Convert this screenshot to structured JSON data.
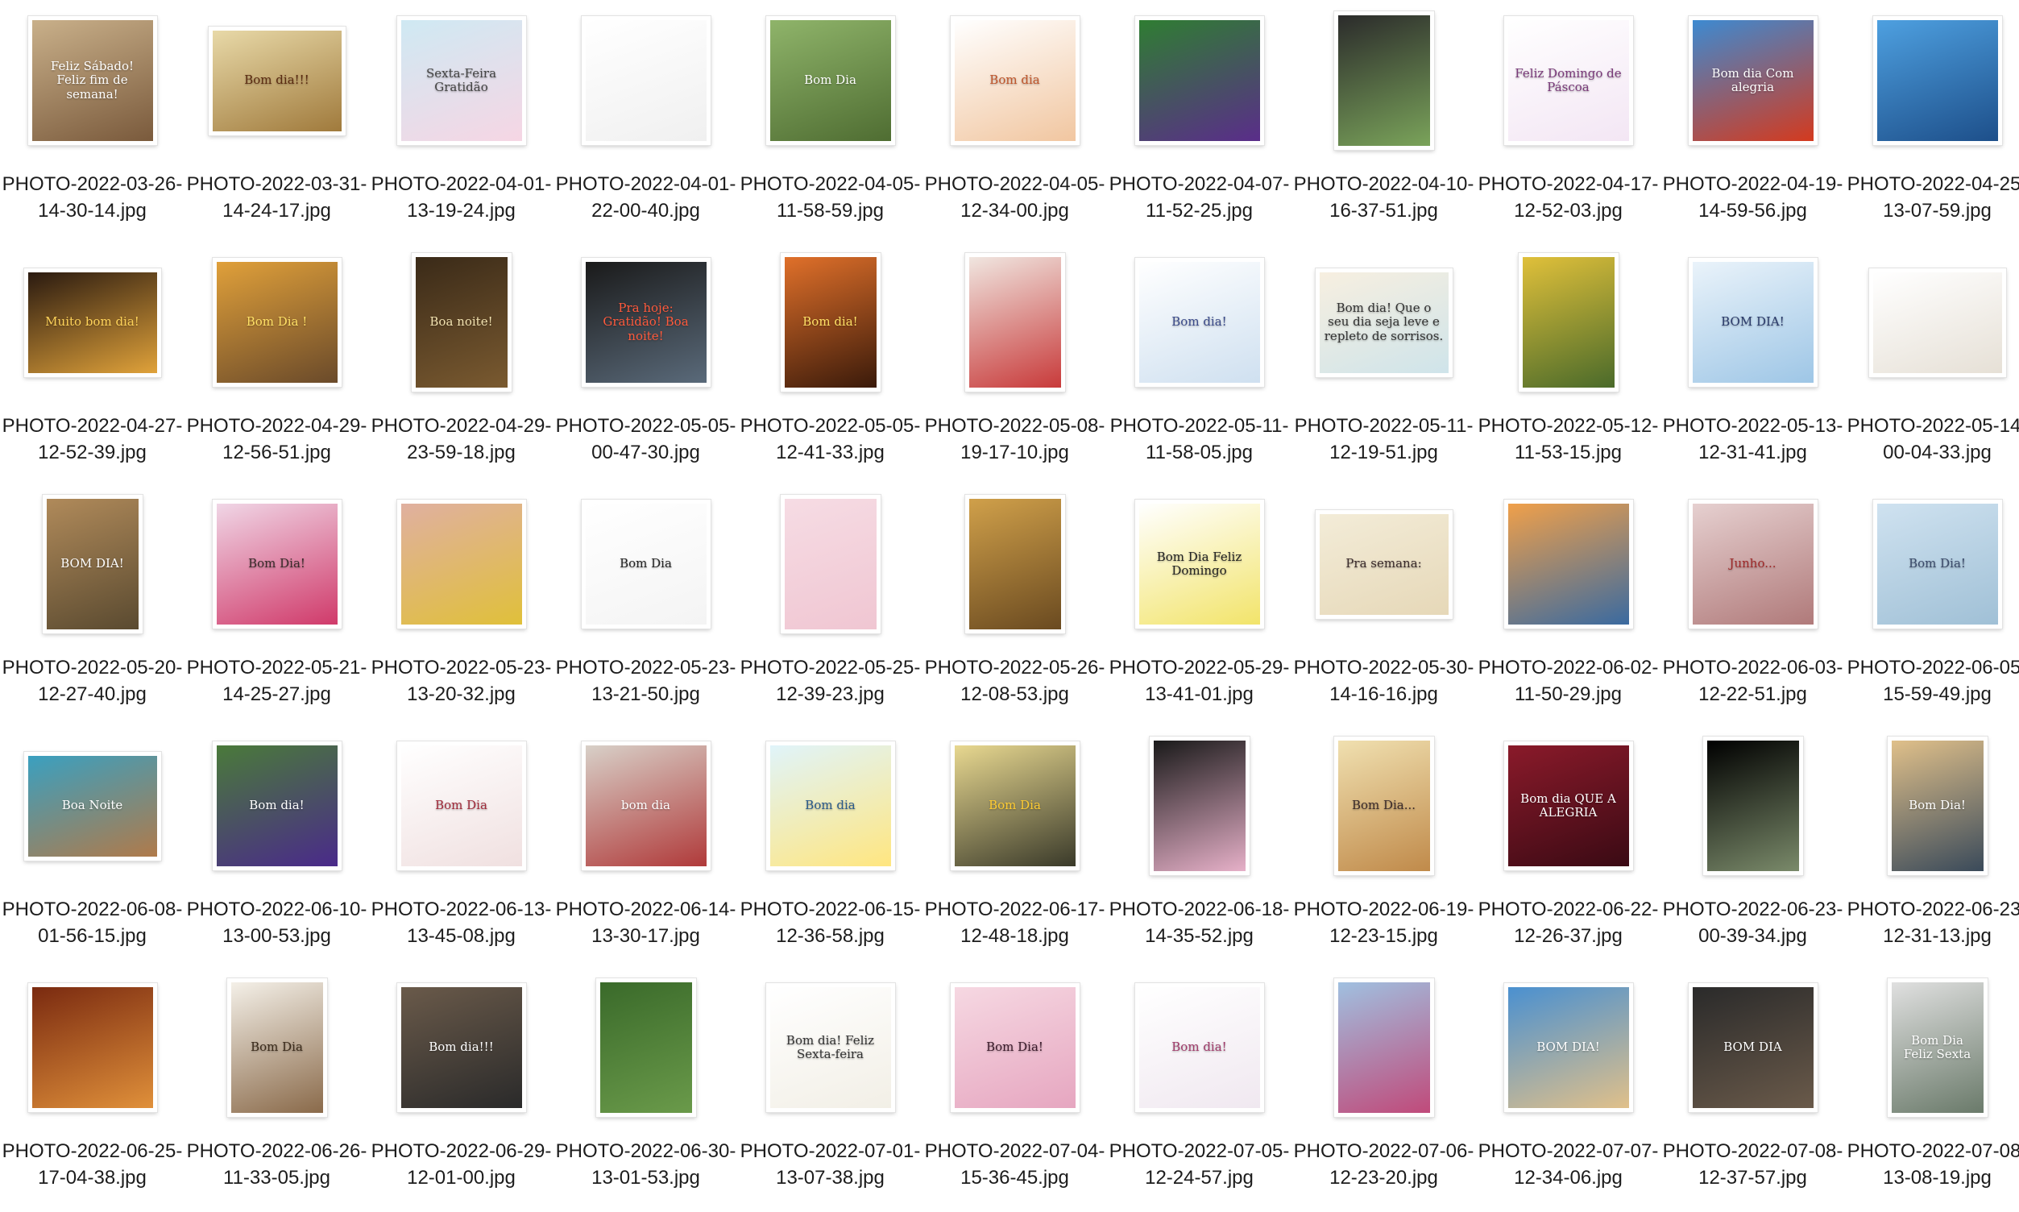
{
  "window": {
    "view": "icon-grid"
  },
  "files": [
    {
      "name": "PHOTO-2022-03-26-14-30-14.jpg",
      "caption": "Feliz Sábado! Feliz fim de semana!",
      "shape": "square",
      "c1": "#c9b08a",
      "c2": "#7a5a3c",
      "fg": "#ffffff"
    },
    {
      "name": "PHOTO-2022-03-31-14-24-17.jpg",
      "caption": "Bom dia!!!",
      "shape": "landscape",
      "c1": "#e8d9a8",
      "c2": "#a07a3c",
      "fg": "#5a2a10"
    },
    {
      "name": "PHOTO-2022-04-01-13-19-24.jpg",
      "caption": "Sexta-Feira Gratidão",
      "shape": "square",
      "c1": "#cfe9f3",
      "c2": "#f6d6e4",
      "fg": "#444444"
    },
    {
      "name": "PHOTO-2022-04-01-22-00-40.jpg",
      "caption": "",
      "shape": "square",
      "c1": "#ffffff",
      "c2": "#f0f0f0",
      "fg": "#222222"
    },
    {
      "name": "PHOTO-2022-04-05-11-58-59.jpg",
      "caption": "Bom Dia",
      "shape": "square",
      "c1": "#8fb46a",
      "c2": "#4f6d32",
      "fg": "#ffffff"
    },
    {
      "name": "PHOTO-2022-04-05-12-34-00.jpg",
      "caption": "Bom dia",
      "shape": "square",
      "c1": "#ffffff",
      "c2": "#f1c6a0",
      "fg": "#c0552a"
    },
    {
      "name": "PHOTO-2022-04-07-11-52-25.jpg",
      "caption": "",
      "shape": "square",
      "c1": "#2f7d32",
      "c2": "#5a2d8a",
      "fg": "#ffffff"
    },
    {
      "name": "PHOTO-2022-04-10-16-37-51.jpg",
      "caption": "",
      "shape": "tall",
      "c1": "#2b2b2b",
      "c2": "#7aa35a",
      "fg": "#ffffff"
    },
    {
      "name": "PHOTO-2022-04-17-12-52-03.jpg",
      "caption": "Feliz Domingo de Páscoa",
      "shape": "square",
      "c1": "#ffffff",
      "c2": "#f3e6f4",
      "fg": "#7a3a7a"
    },
    {
      "name": "PHOTO-2022-04-19-14-59-56.jpg",
      "caption": "Bom dia Com alegria",
      "shape": "square",
      "c1": "#3d8ad1",
      "c2": "#d43a1e",
      "fg": "#ffffff"
    },
    {
      "name": "PHOTO-2022-04-25-13-07-59.jpg",
      "caption": "",
      "shape": "square",
      "c1": "#4ea0e0",
      "c2": "#1d4f8a",
      "fg": "#ffffff"
    },
    {
      "name": "PHOTO-2022-04-27-12-52-39.jpg",
      "caption": "Muito bom dia!",
      "shape": "landscape",
      "c1": "#2a1a10",
      "c2": "#e0a23a",
      "fg": "#ffd35a"
    },
    {
      "name": "PHOTO-2022-04-29-12-56-51.jpg",
      "caption": "Bom Dia !",
      "shape": "square",
      "c1": "#e0a03a",
      "c2": "#6a4a2a",
      "fg": "#ffe066"
    },
    {
      "name": "PHOTO-2022-04-29-23-59-18.jpg",
      "caption": "Boa noite!",
      "shape": "tall",
      "c1": "#3a2a18",
      "c2": "#7a5a30",
      "fg": "#f2e2b0"
    },
    {
      "name": "PHOTO-2022-05-05-00-47-30.jpg",
      "caption": "Pra hoje: Gratidão! Boa noite!",
      "shape": "square",
      "c1": "#1a1a1a",
      "c2": "#5a6a7a",
      "fg": "#ff5a3c"
    },
    {
      "name": "PHOTO-2022-05-05-12-41-33.jpg",
      "caption": "Bom dia!",
      "shape": "tall",
      "c1": "#e0702a",
      "c2": "#3a1a0a",
      "fg": "#ffe066"
    },
    {
      "name": "PHOTO-2022-05-08-19-17-10.jpg",
      "caption": "",
      "shape": "tall",
      "c1": "#f0e6e0",
      "c2": "#c83a3a",
      "fg": "#ffffff"
    },
    {
      "name": "PHOTO-2022-05-11-11-58-05.jpg",
      "caption": "Bom dia!",
      "shape": "square",
      "c1": "#ffffff",
      "c2": "#cfe0f0",
      "fg": "#3a4a8a"
    },
    {
      "name": "PHOTO-2022-05-11-12-19-51.jpg",
      "caption": "Bom dia! Que o seu dia seja leve e repleto de sorrisos.",
      "shape": "landscape",
      "c1": "#f7efe0",
      "c2": "#cfe4ea",
      "fg": "#333333"
    },
    {
      "name": "PHOTO-2022-05-12-11-53-15.jpg",
      "caption": "",
      "shape": "tall",
      "c1": "#e0c03a",
      "c2": "#4a6a2a",
      "fg": "#ffffff"
    },
    {
      "name": "PHOTO-2022-05-13-12-31-41.jpg",
      "caption": "BOM DIA!",
      "shape": "square",
      "c1": "#eaf3fa",
      "c2": "#9ec6e6",
      "fg": "#2a3a6a"
    },
    {
      "name": "PHOTO-2022-05-14-00-04-33.jpg",
      "caption": "",
      "shape": "landscape",
      "c1": "#ffffff",
      "c2": "#e6e0d6",
      "fg": "#444444"
    },
    {
      "name": "PHOTO-2022-05-20-12-27-40.jpg",
      "caption": "BOM DIA!",
      "shape": "tall",
      "c1": "#b08a5a",
      "c2": "#5a4a30",
      "fg": "#ffffff"
    },
    {
      "name": "PHOTO-2022-05-21-14-25-27.jpg",
      "caption": "Bom Dia!",
      "shape": "square",
      "c1": "#f0d6e6",
      "c2": "#d03a6a",
      "fg": "#3a2a2a"
    },
    {
      "name": "PHOTO-2022-05-23-13-20-32.jpg",
      "caption": "",
      "shape": "square",
      "c1": "#e0b0a0",
      "c2": "#e0c03a",
      "fg": "#4a2a1a"
    },
    {
      "name": "PHOTO-2022-05-23-13-21-50.jpg",
      "caption": "Bom Dia",
      "shape": "square",
      "c1": "#ffffff",
      "c2": "#f4f4f4",
      "fg": "#222222"
    },
    {
      "name": "PHOTO-2022-05-25-12-39-23.jpg",
      "caption": "",
      "shape": "tall",
      "c1": "#f6dce4",
      "c2": "#f0c6d2",
      "fg": "#a03a5a"
    },
    {
      "name": "PHOTO-2022-05-26-12-08-53.jpg",
      "caption": "",
      "shape": "tall",
      "c1": "#d0a04a",
      "c2": "#6a4a20",
      "fg": "#ffffff"
    },
    {
      "name": "PHOTO-2022-05-29-13-41-01.jpg",
      "caption": "Bom Dia Feliz Domingo",
      "shape": "square",
      "c1": "#ffffff",
      "c2": "#f2e46a",
      "fg": "#222222"
    },
    {
      "name": "PHOTO-2022-05-30-14-16-16.jpg",
      "caption": "Pra semana:",
      "shape": "landscape",
      "c1": "#f3ecd8",
      "c2": "#e6d8b8",
      "fg": "#3a2a2a"
    },
    {
      "name": "PHOTO-2022-06-02-11-50-29.jpg",
      "caption": "",
      "shape": "square",
      "c1": "#f0a04a",
      "c2": "#3a6aa0",
      "fg": "#ffffff"
    },
    {
      "name": "PHOTO-2022-06-03-12-22-51.jpg",
      "caption": "Junho...",
      "shape": "square",
      "c1": "#e6d0d0",
      "c2": "#b07a7a",
      "fg": "#a02a2a"
    },
    {
      "name": "PHOTO-2022-06-05-15-59-49.jpg",
      "caption": "Bom Dia!",
      "shape": "square",
      "c1": "#cfe2f0",
      "c2": "#a0c0d6",
      "fg": "#3a4a6a"
    },
    {
      "name": "PHOTO-2022-06-08-01-56-15.jpg",
      "caption": "Boa Noite",
      "shape": "landscape",
      "c1": "#3aa0c0",
      "c2": "#b07a4a",
      "fg": "#ffffff"
    },
    {
      "name": "PHOTO-2022-06-10-13-00-53.jpg",
      "caption": "Bom dia!",
      "shape": "square",
      "c1": "#4a7a3a",
      "c2": "#4a2a8a",
      "fg": "#ffffff"
    },
    {
      "name": "PHOTO-2022-06-13-13-45-08.jpg",
      "caption": "Bom Dia",
      "shape": "square",
      "c1": "#ffffff",
      "c2": "#f0e0e0",
      "fg": "#a02a3a"
    },
    {
      "name": "PHOTO-2022-06-14-13-30-17.jpg",
      "caption": "bom dia",
      "shape": "square",
      "c1": "#d8d0c8",
      "c2": "#b03a3a",
      "fg": "#ffffff"
    },
    {
      "name": "PHOTO-2022-06-15-12-36-58.jpg",
      "caption": "Bom dia",
      "shape": "square",
      "c1": "#e0f4fa",
      "c2": "#ffe680",
      "fg": "#2a5a8a"
    },
    {
      "name": "PHOTO-2022-06-17-12-48-18.jpg",
      "caption": "Bom Dia",
      "shape": "square",
      "c1": "#e8d890",
      "c2": "#3a3a2a",
      "fg": "#ffcc33"
    },
    {
      "name": "PHOTO-2022-06-18-14-35-52.jpg",
      "caption": "",
      "shape": "tall",
      "c1": "#1a1a1a",
      "c2": "#e6b0c8",
      "fg": "#ffffff"
    },
    {
      "name": "PHOTO-2022-06-19-12-23-15.jpg",
      "caption": "Bom Dia...",
      "shape": "tall",
      "c1": "#f0e0b0",
      "c2": "#c08a4a",
      "fg": "#3a2a2a"
    },
    {
      "name": "PHOTO-2022-06-22-12-26-37.jpg",
      "caption": "Bom dia QUE A ALEGRIA",
      "shape": "square",
      "c1": "#8a1a2a",
      "c2": "#3a0a14",
      "fg": "#ffffff"
    },
    {
      "name": "PHOTO-2022-06-23-00-39-34.jpg",
      "caption": "",
      "shape": "tall",
      "c1": "#000000",
      "c2": "#7a8a6a",
      "fg": "#ffffff"
    },
    {
      "name": "PHOTO-2022-06-23-12-31-13.jpg",
      "caption": "Bom Dia!",
      "shape": "tall",
      "c1": "#e0c08a",
      "c2": "#3a4a5a",
      "fg": "#ffffff"
    },
    {
      "name": "PHOTO-2022-06-25-17-04-38.jpg",
      "caption": "",
      "shape": "square",
      "c1": "#7a2a10",
      "c2": "#e0903a",
      "fg": "#ffffff"
    },
    {
      "name": "PHOTO-2022-06-26-11-33-05.jpg",
      "caption": "Bom Dia",
      "shape": "tall",
      "c1": "#f4f0e8",
      "c2": "#8a6a4a",
      "fg": "#3a2a1a"
    },
    {
      "name": "PHOTO-2022-06-29-12-01-00.jpg",
      "caption": "Bom dia!!!",
      "shape": "square",
      "c1": "#6a5a4a",
      "c2": "#2a2a2a",
      "fg": "#ffffff"
    },
    {
      "name": "PHOTO-2022-06-30-13-01-53.jpg",
      "caption": "",
      "shape": "tall",
      "c1": "#3a6a2a",
      "c2": "#6a9a4a",
      "fg": "#ffffff"
    },
    {
      "name": "PHOTO-2022-07-01-13-07-38.jpg",
      "caption": "Bom dia! Feliz Sexta-feira",
      "shape": "square",
      "c1": "#ffffff",
      "c2": "#f2efe6",
      "fg": "#333333"
    },
    {
      "name": "PHOTO-2022-07-04-15-36-45.jpg",
      "caption": "Bom Dia!",
      "shape": "square",
      "c1": "#f6d8e2",
      "c2": "#e6a6c0",
      "fg": "#3a1a2a"
    },
    {
      "name": "PHOTO-2022-07-05-12-24-57.jpg",
      "caption": "Bom dia!",
      "shape": "square",
      "c1": "#ffffff",
      "c2": "#f0e8f0",
      "fg": "#a03a6a"
    },
    {
      "name": "PHOTO-2022-07-06-12-23-20.jpg",
      "caption": "",
      "shape": "tall",
      "c1": "#a0c0e0",
      "c2": "#c04a7a",
      "fg": "#ffffff"
    },
    {
      "name": "PHOTO-2022-07-07-12-34-06.jpg",
      "caption": "BOM DIA!",
      "shape": "square",
      "c1": "#4a90d0",
      "c2": "#e0c08a",
      "fg": "#ffffff"
    },
    {
      "name": "PHOTO-2022-07-08-12-37-57.jpg",
      "caption": "BOM DIA",
      "shape": "square",
      "c1": "#2a2a2a",
      "c2": "#6a5a4a",
      "fg": "#ffffff"
    },
    {
      "name": "PHOTO-2022-07-08-13-08-19.jpg",
      "caption": "Bom Dia Feliz Sexta",
      "shape": "tall",
      "c1": "#e0e0e0",
      "c2": "#6a7a6a",
      "fg": "#ffffff"
    }
  ],
  "colors": {
    "label_text": "#1c1c1c",
    "background": "#ffffff",
    "thumb_border": "#ffffff"
  }
}
